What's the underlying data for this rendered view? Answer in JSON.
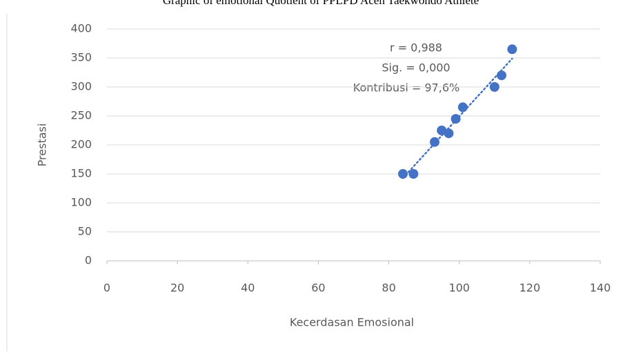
{
  "chart_data": {
    "type": "scatter",
    "title": "Graphic of emotional Quotient of PPLPD Aceh Taekwondo Athlete",
    "x_label": "Kecerdasan Emosional",
    "y_label": "Prestasi",
    "x": [
      84,
      87,
      93,
      95,
      97,
      99,
      101,
      110,
      112,
      115
    ],
    "values": [
      150,
      150,
      205,
      225,
      220,
      245,
      265,
      300,
      320,
      365
    ],
    "color": "#4472c4",
    "xlim": [
      0,
      140
    ],
    "xticks": [
      0,
      20,
      40,
      60,
      80,
      100,
      120,
      140
    ],
    "ylim": [
      0,
      400
    ],
    "yticks": [
      0,
      50,
      100,
      150,
      200,
      250,
      300,
      350,
      400
    ],
    "grid": true,
    "trendline": true,
    "annotations": [
      "r = 0,988",
      "Sig. = 0,000",
      "Kontribusi = 97,6%"
    ]
  }
}
